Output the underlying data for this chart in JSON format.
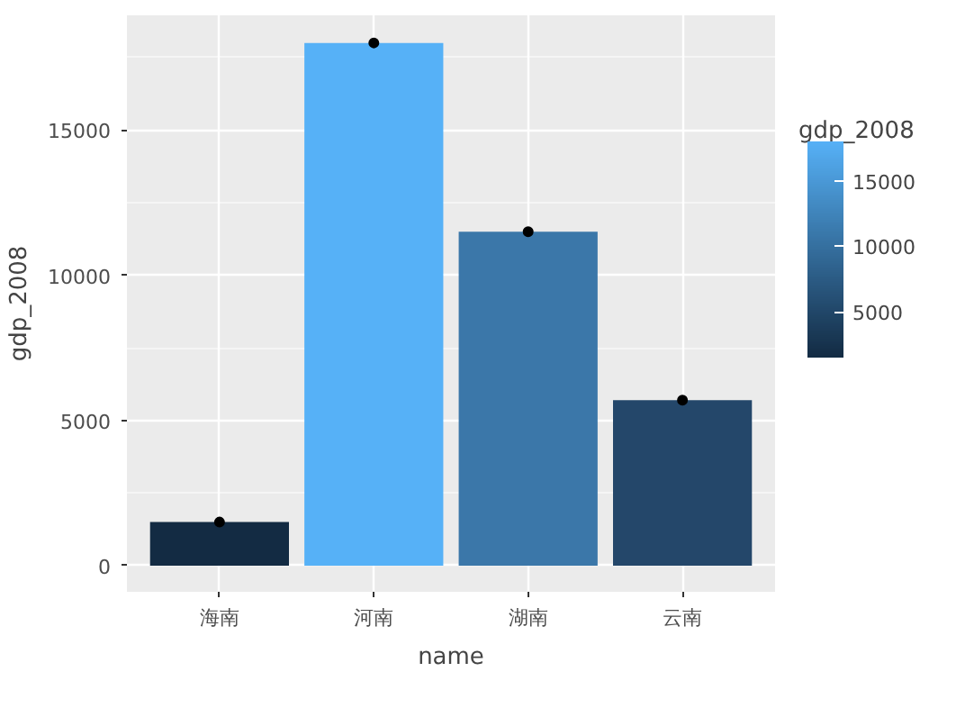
{
  "chart_data": {
    "type": "bar",
    "xlabel": "name",
    "ylabel": "gdp_2008",
    "clabel": "gdp_2008",
    "categories": [
      "海南",
      "河南",
      "湖南",
      "云南"
    ],
    "series": [
      {
        "values": [
          1500,
          18000,
          11500,
          5700
        ],
        "colors": [
          "#132b43",
          "#56b1f7",
          "#3b77a9",
          "#24476a"
        ]
      },
      {
        "type": "scatter",
        "x": [
          "海南",
          "河南",
          "湖南",
          "云南"
        ],
        "values": [
          1500,
          18000,
          11500,
          5700
        ],
        "color": "#000000",
        "marker": "circle"
      }
    ],
    "ylim": [
      -900,
      18950
    ],
    "yticks": [
      0,
      5000,
      10000,
      15000
    ],
    "grid": true,
    "clim": [
      1500,
      18000
    ],
    "cticks": [
      5000,
      10000,
      15000
    ]
  }
}
